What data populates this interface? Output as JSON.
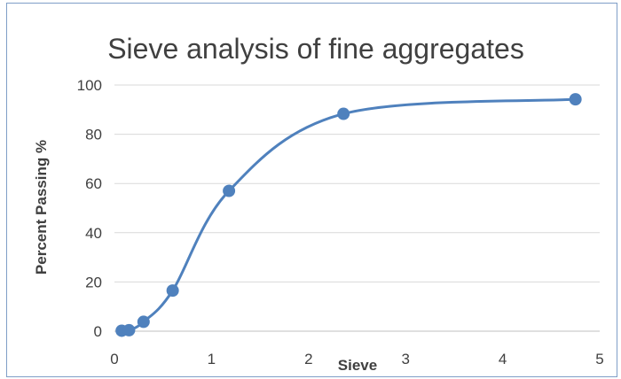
{
  "chart_data": {
    "type": "scatter",
    "title": "Sieve analysis of fine aggregates",
    "xlabel": "Sieve",
    "ylabel": "Percent Passing %",
    "xlim": [
      0,
      5
    ],
    "ylim": [
      0,
      100
    ],
    "xticks": [
      "0",
      "1",
      "2",
      "3",
      "4",
      "5"
    ],
    "yticks": [
      "0",
      "20",
      "40",
      "60",
      "80",
      "100"
    ],
    "grid": true,
    "smooth_line": true,
    "series_color": "#4f81bd",
    "grid_color": "#d9d9d9",
    "series": [
      {
        "x": [
          0.075,
          0.15,
          0.3,
          0.6,
          1.18,
          2.36,
          4.75
        ],
        "y": [
          0.2,
          0.4,
          3.8,
          16.5,
          57.0,
          88.3,
          94.2
        ]
      }
    ]
  }
}
